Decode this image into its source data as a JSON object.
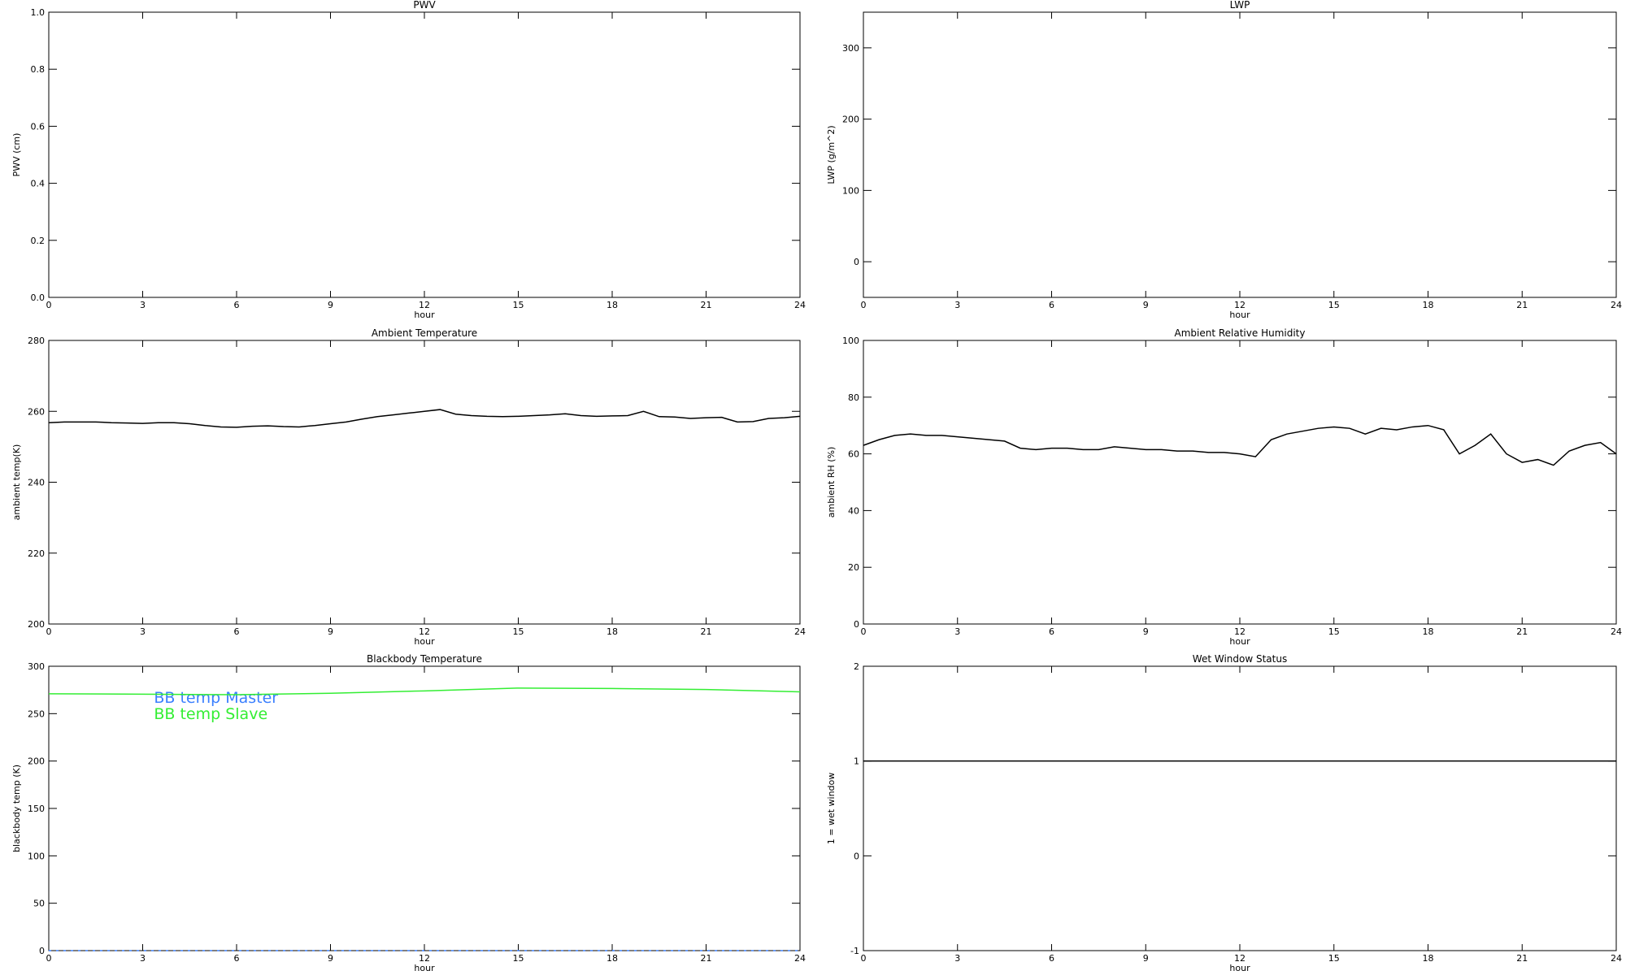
{
  "chart_data": [
    {
      "type": "line",
      "title": "PWV",
      "xlabel": "hour",
      "ylabel": "PWV (cm)",
      "xlim": [
        0,
        24
      ],
      "xticks": [
        0,
        3,
        6,
        9,
        12,
        15,
        18,
        21,
        24
      ],
      "ylim": [
        0,
        1
      ],
      "yticks": [
        {
          "value": 0,
          "label": "0.0"
        },
        0.2,
        0.4,
        0.6,
        0.8,
        {
          "value": 1,
          "label": "1.0"
        }
      ],
      "x": [],
      "series": []
    },
    {
      "type": "line",
      "title": "LWP",
      "xlabel": "hour",
      "ylabel": "LWP (g/m^2)",
      "xlim": [
        0,
        24
      ],
      "xticks": [
        0,
        3,
        6,
        9,
        12,
        15,
        18,
        21,
        24
      ],
      "ylim": [
        -50,
        350
      ],
      "yticks": [
        0,
        100,
        200,
        300
      ],
      "x": [],
      "series": []
    },
    {
      "type": "line",
      "title": "Ambient Temperature",
      "xlabel": "hour",
      "ylabel": "ambient temp(K)",
      "xlim": [
        0,
        24
      ],
      "xticks": [
        0,
        3,
        6,
        9,
        12,
        15,
        18,
        21,
        24
      ],
      "ylim": [
        200,
        280
      ],
      "yticks": [
        200,
        220,
        240,
        260,
        280
      ],
      "x": [
        0,
        0.5,
        1,
        1.5,
        2,
        2.5,
        3,
        3.5,
        4,
        4.5,
        5,
        5.5,
        6,
        6.5,
        7,
        7.5,
        8,
        8.5,
        9,
        9.5,
        10,
        10.5,
        11,
        11.5,
        12,
        12.5,
        13,
        13.5,
        14,
        14.5,
        15,
        15.5,
        16,
        16.5,
        17,
        17.5,
        18,
        18.5,
        19,
        19.5,
        20,
        20.5,
        21,
        21.5,
        22,
        22.5,
        23,
        23.5,
        24
      ],
      "series": [
        {
          "color": "#000000",
          "values": [
            256.8,
            257,
            257,
            257,
            256.8,
            256.7,
            256.6,
            256.8,
            256.8,
            256.5,
            256,
            255.6,
            255.5,
            255.8,
            255.9,
            255.7,
            255.6,
            256,
            256.5,
            257,
            257.8,
            258.5,
            259,
            259.5,
            260,
            260.5,
            259.2,
            258.8,
            258.6,
            258.5,
            258.6,
            258.8,
            259,
            259.3,
            258.8,
            258.6,
            258.7,
            258.8,
            260,
            258.5,
            258.4,
            258,
            258.2,
            258.3,
            257,
            257.1,
            258,
            258.2,
            258.6
          ]
        }
      ]
    },
    {
      "type": "line",
      "title": "Ambient Relative Humidity",
      "xlabel": "hour",
      "ylabel": "ambient RH (%)",
      "xlim": [
        0,
        24
      ],
      "xticks": [
        0,
        3,
        6,
        9,
        12,
        15,
        18,
        21,
        24
      ],
      "ylim": [
        0,
        100
      ],
      "yticks": [
        0,
        20,
        40,
        60,
        80,
        100
      ],
      "x": [
        0,
        0.5,
        1,
        1.5,
        2,
        2.5,
        3,
        3.5,
        4,
        4.5,
        5,
        5.5,
        6,
        6.5,
        7,
        7.5,
        8,
        8.5,
        9,
        9.5,
        10,
        10.5,
        11,
        11.5,
        12,
        12.5,
        13,
        13.5,
        14,
        14.5,
        15,
        15.5,
        16,
        16.5,
        17,
        17.5,
        18,
        18.5,
        19,
        19.5,
        20,
        20.5,
        21,
        21.5,
        22,
        22.5,
        23,
        23.5,
        24
      ],
      "series": [
        {
          "color": "#000000",
          "values": [
            63,
            65,
            66.5,
            67,
            66.5,
            66.5,
            66,
            65.5,
            65,
            64.5,
            62,
            61.5,
            62,
            62,
            61.5,
            61.5,
            62.5,
            62,
            61.5,
            61.5,
            61,
            61,
            60.5,
            60.5,
            60,
            59,
            65,
            67,
            68,
            69,
            69.5,
            69,
            67,
            69,
            68.5,
            69.5,
            70,
            68.5,
            60,
            63,
            67,
            60,
            57,
            58,
            56,
            61,
            63,
            64,
            60
          ]
        }
      ]
    },
    {
      "type": "line",
      "title": "Blackbody Temperature",
      "xlabel": "hour",
      "ylabel": "blackbody temp (K)",
      "xlim": [
        0,
        24
      ],
      "xticks": [
        0,
        3,
        6,
        9,
        12,
        15,
        18,
        21,
        24
      ],
      "ylim": [
        0,
        300
      ],
      "yticks": [
        0,
        50,
        100,
        150,
        200,
        250,
        300
      ],
      "legend": "upper left",
      "x": [
        0,
        3,
        6,
        9,
        12,
        15,
        18,
        21,
        24
      ],
      "series": [
        {
          "name": "BB temp Master",
          "color": "#3a7fff",
          "values": [
            0,
            0,
            0,
            0,
            0,
            0,
            0,
            0,
            0
          ]
        },
        {
          "name": "BB temp Slave",
          "color": "#33ee33",
          "values": [
            271,
            270.5,
            270,
            271.5,
            274,
            277,
            276.5,
            275.5,
            273
          ]
        }
      ]
    },
    {
      "type": "line",
      "title": "Wet Window Status",
      "xlabel": "hour",
      "ylabel": "1 = wet window",
      "xlim": [
        0,
        24
      ],
      "xticks": [
        0,
        3,
        6,
        9,
        12,
        15,
        18,
        21,
        24
      ],
      "ylim": [
        -1,
        2
      ],
      "yticks": [
        -1,
        0,
        1,
        2
      ],
      "x": [
        0,
        24
      ],
      "series": [
        {
          "color": "#000000",
          "values": [
            1,
            1
          ]
        }
      ]
    }
  ]
}
